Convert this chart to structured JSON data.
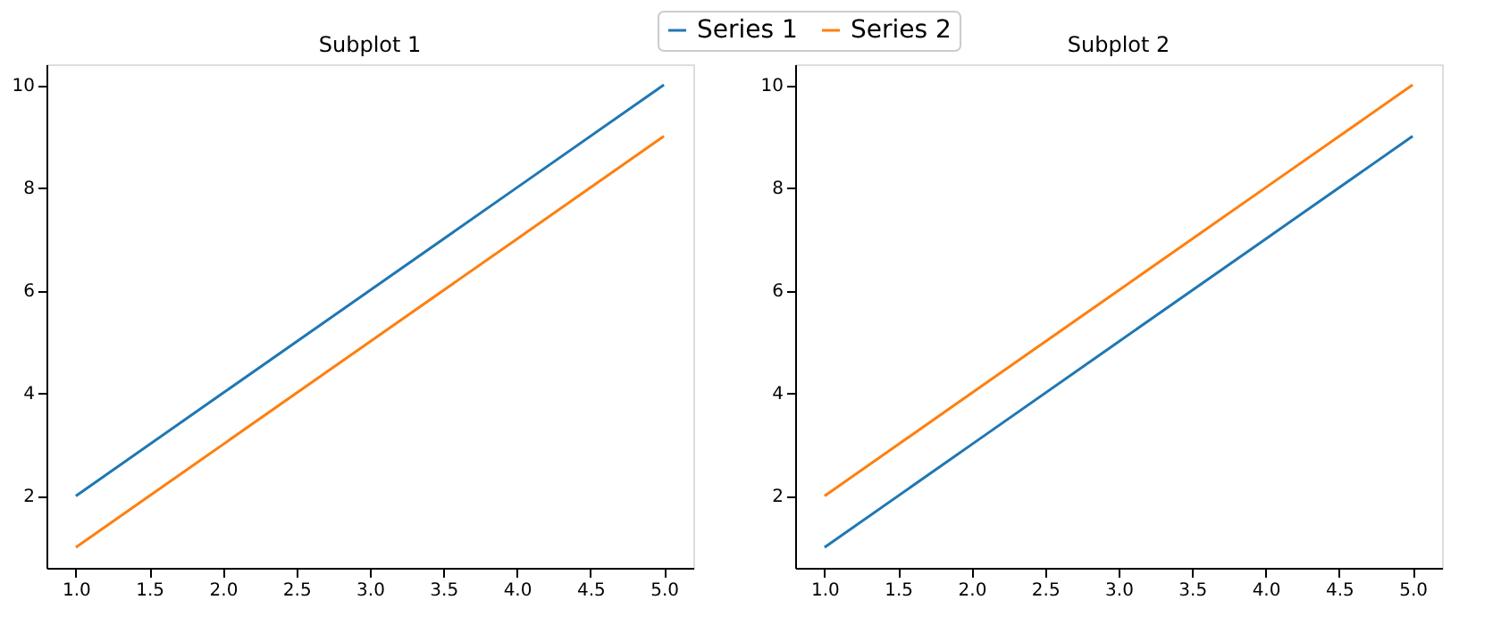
{
  "chart_data": [
    {
      "type": "line",
      "title": "Subplot 1",
      "x": [
        1,
        2,
        3,
        4,
        5
      ],
      "series": [
        {
          "name": "Series 1",
          "color": "#1f77b4",
          "values": [
            2,
            4,
            6,
            8,
            10
          ]
        },
        {
          "name": "Series 2",
          "color": "#ff7f0e",
          "values": [
            1,
            3,
            5,
            7,
            9
          ]
        }
      ],
      "xlim": [
        0.8,
        5.2
      ],
      "xticks": [
        {
          "value": 1,
          "label": "1.0"
        },
        {
          "value": 1.5,
          "label": "1.5"
        },
        {
          "value": 2,
          "label": "2.0"
        },
        {
          "value": 2.5,
          "label": "2.5"
        },
        {
          "value": 3,
          "label": "3.0"
        },
        {
          "value": 3.5,
          "label": "3.5"
        },
        {
          "value": 4,
          "label": "4.0"
        },
        {
          "value": 4.5,
          "label": "4.5"
        },
        {
          "value": 5,
          "label": "5.0"
        }
      ],
      "ylim": [
        0.6,
        10.4
      ],
      "yticks": [
        2,
        4,
        6,
        8,
        10
      ],
      "grid": false,
      "legend": "top",
      "marker": "none",
      "line_style": "solid"
    },
    {
      "type": "line",
      "title": "Subplot 2",
      "x": [
        1,
        2,
        3,
        4,
        5
      ],
      "series": [
        {
          "name": "Series 1",
          "color": "#1f77b4",
          "values": [
            1,
            3,
            5,
            7,
            9
          ]
        },
        {
          "name": "Series 2",
          "color": "#ff7f0e",
          "values": [
            2,
            4,
            6,
            8,
            10
          ]
        }
      ],
      "xlim": [
        0.8,
        5.2
      ],
      "xticks": [
        {
          "value": 1,
          "label": "1.0"
        },
        {
          "value": 1.5,
          "label": "1.5"
        },
        {
          "value": 2,
          "label": "2.0"
        },
        {
          "value": 2.5,
          "label": "2.5"
        },
        {
          "value": 3,
          "label": "3.0"
        },
        {
          "value": 3.5,
          "label": "3.5"
        },
        {
          "value": 4,
          "label": "4.0"
        },
        {
          "value": 4.5,
          "label": "4.5"
        },
        {
          "value": 5,
          "label": "5.0"
        }
      ],
      "ylim": [
        0.6,
        10.4
      ],
      "yticks": [
        2,
        4,
        6,
        8,
        10
      ],
      "grid": false,
      "legend": "top",
      "marker": "none",
      "line_style": "solid"
    }
  ]
}
